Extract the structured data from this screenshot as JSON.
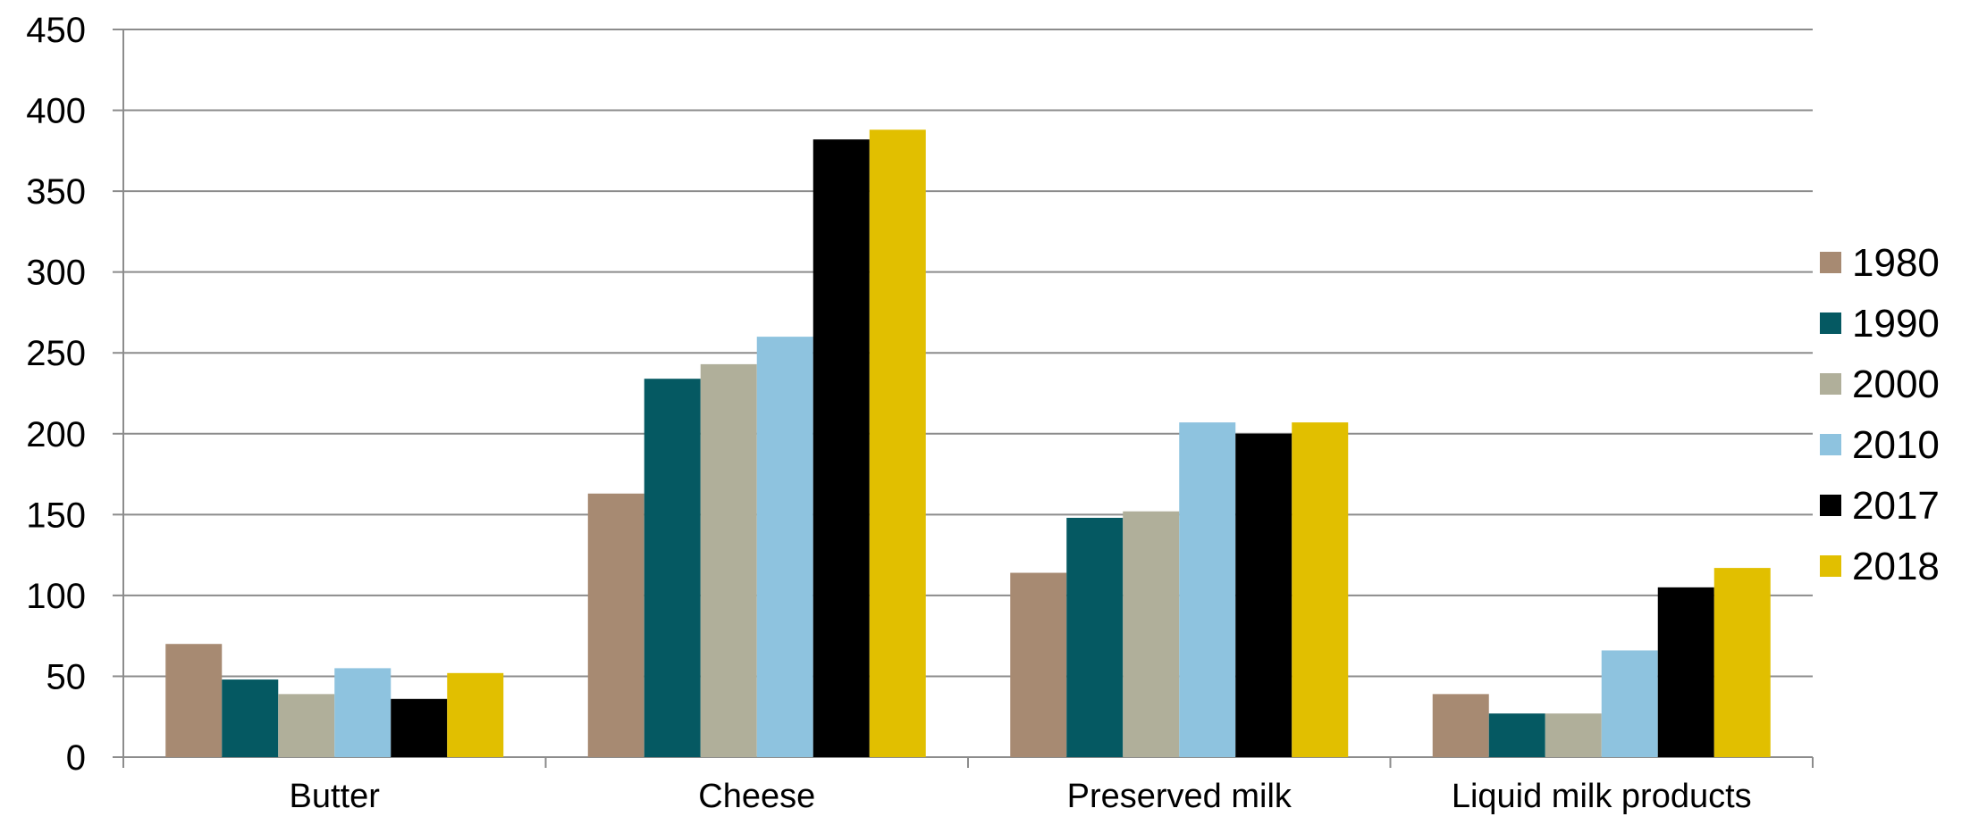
{
  "chart_data": {
    "type": "bar",
    "title": "",
    "xlabel": "",
    "ylabel": "",
    "categories": [
      "Butter",
      "Cheese",
      "Preserved milk",
      "Liquid milk products"
    ],
    "ylim": [
      0,
      450
    ],
    "yticks": [
      0,
      50,
      100,
      150,
      200,
      250,
      300,
      350,
      400,
      450
    ],
    "grid": true,
    "legend": "right",
    "series": [
      {
        "name": "1980",
        "color": "#a78a72",
        "values": [
          70,
          163,
          114,
          39
        ]
      },
      {
        "name": "1990",
        "color": "#055962",
        "values": [
          48,
          234,
          148,
          27
        ]
      },
      {
        "name": "2000",
        "color": "#b0af9a",
        "values": [
          39,
          243,
          152,
          27
        ]
      },
      {
        "name": "2010",
        "color": "#8ec3df",
        "values": [
          55,
          260,
          207,
          66
        ]
      },
      {
        "name": "2017",
        "color": "#000000",
        "values": [
          36,
          382,
          200,
          105
        ]
      },
      {
        "name": "2018",
        "color": "#e1bf00",
        "values": [
          52,
          388,
          207,
          117
        ]
      }
    ]
  }
}
